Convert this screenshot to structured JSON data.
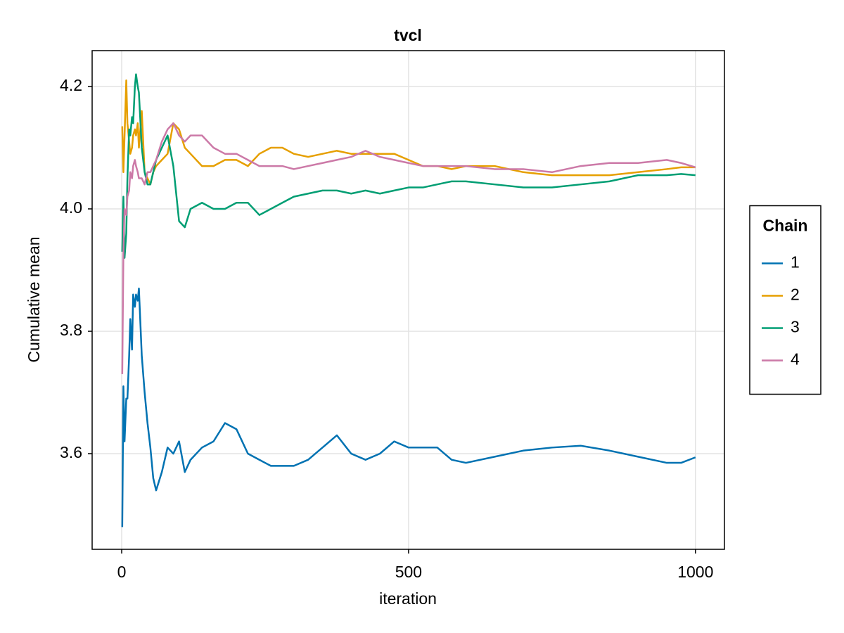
{
  "chart_data": {
    "type": "line",
    "title": "tvcl",
    "x_label": "iteration",
    "y_label": "Cumulative mean",
    "x": [
      1,
      3,
      5,
      8,
      10,
      13,
      15,
      18,
      20,
      23,
      25,
      28,
      30,
      35,
      40,
      45,
      50,
      55,
      60,
      70,
      80,
      90,
      100,
      110,
      120,
      140,
      160,
      180,
      200,
      220,
      240,
      260,
      280,
      300,
      325,
      350,
      375,
      400,
      425,
      450,
      475,
      500,
      525,
      550,
      575,
      600,
      650,
      700,
      750,
      800,
      850,
      900,
      950,
      975,
      1000
    ],
    "series": [
      {
        "name": "1",
        "color": "#0072b2",
        "values": [
          3.48,
          3.71,
          3.62,
          3.69,
          3.69,
          3.76,
          3.82,
          3.77,
          3.86,
          3.84,
          3.86,
          3.85,
          3.87,
          3.76,
          3.7,
          3.65,
          3.61,
          3.56,
          3.54,
          3.57,
          3.61,
          3.6,
          3.62,
          3.57,
          3.59,
          3.61,
          3.62,
          3.65,
          3.64,
          3.6,
          3.59,
          3.58,
          3.58,
          3.58,
          3.59,
          3.61,
          3.63,
          3.6,
          3.59,
          3.6,
          3.62,
          3.61,
          3.61,
          3.61,
          3.59,
          3.585,
          3.595,
          3.605,
          3.61,
          3.613,
          3.605,
          3.595,
          3.585,
          3.585,
          3.594
        ]
      },
      {
        "name": "2",
        "color": "#e69f00",
        "values": [
          4.135,
          4.06,
          4.12,
          4.21,
          4.14,
          4.11,
          4.09,
          4.1,
          4.12,
          4.13,
          4.12,
          4.14,
          4.1,
          4.16,
          4.06,
          4.05,
          4.04,
          4.06,
          4.07,
          4.08,
          4.09,
          4.14,
          4.13,
          4.1,
          4.09,
          4.07,
          4.07,
          4.08,
          4.08,
          4.07,
          4.09,
          4.1,
          4.1,
          4.09,
          4.085,
          4.09,
          4.095,
          4.09,
          4.09,
          4.09,
          4.09,
          4.08,
          4.07,
          4.07,
          4.065,
          4.07,
          4.07,
          4.06,
          4.055,
          4.055,
          4.055,
          4.06,
          4.065,
          4.068,
          4.068
        ]
      },
      {
        "name": "3",
        "color": "#009e73",
        "values": [
          3.93,
          4.02,
          3.92,
          3.96,
          4.05,
          4.13,
          4.12,
          4.15,
          4.14,
          4.2,
          4.22,
          4.2,
          4.19,
          4.1,
          4.06,
          4.04,
          4.04,
          4.06,
          4.08,
          4.1,
          4.12,
          4.07,
          3.98,
          3.97,
          4.0,
          4.01,
          4.0,
          4.0,
          4.01,
          4.01,
          3.99,
          4.0,
          4.01,
          4.02,
          4.025,
          4.03,
          4.03,
          4.025,
          4.03,
          4.025,
          4.03,
          4.035,
          4.035,
          4.04,
          4.045,
          4.045,
          4.04,
          4.035,
          4.035,
          4.04,
          4.045,
          4.055,
          4.055,
          4.057,
          4.055
        ]
      },
      {
        "name": "4",
        "color": "#cc79a7",
        "values": [
          3.73,
          3.93,
          4.0,
          3.99,
          4.02,
          4.03,
          4.06,
          4.05,
          4.07,
          4.08,
          4.07,
          4.06,
          4.05,
          4.05,
          4.04,
          4.06,
          4.06,
          4.07,
          4.08,
          4.11,
          4.13,
          4.14,
          4.12,
          4.11,
          4.12,
          4.12,
          4.1,
          4.09,
          4.09,
          4.08,
          4.07,
          4.07,
          4.07,
          4.065,
          4.07,
          4.075,
          4.08,
          4.085,
          4.095,
          4.085,
          4.08,
          4.075,
          4.07,
          4.07,
          4.07,
          4.07,
          4.065,
          4.065,
          4.06,
          4.07,
          4.075,
          4.075,
          4.08,
          4.075,
          4.068
        ]
      }
    ],
    "legend_title": "Chain",
    "legend": "right",
    "grid": true,
    "xlim": [
      -51.5,
      1050.5
    ],
    "xticks": [
      0,
      500,
      1000
    ],
    "ylim": [
      3.4437,
      4.2586
    ],
    "yticks": [
      3.6,
      3.8,
      {
        "value": 4,
        "label": "4.0"
      },
      4.2
    ]
  }
}
